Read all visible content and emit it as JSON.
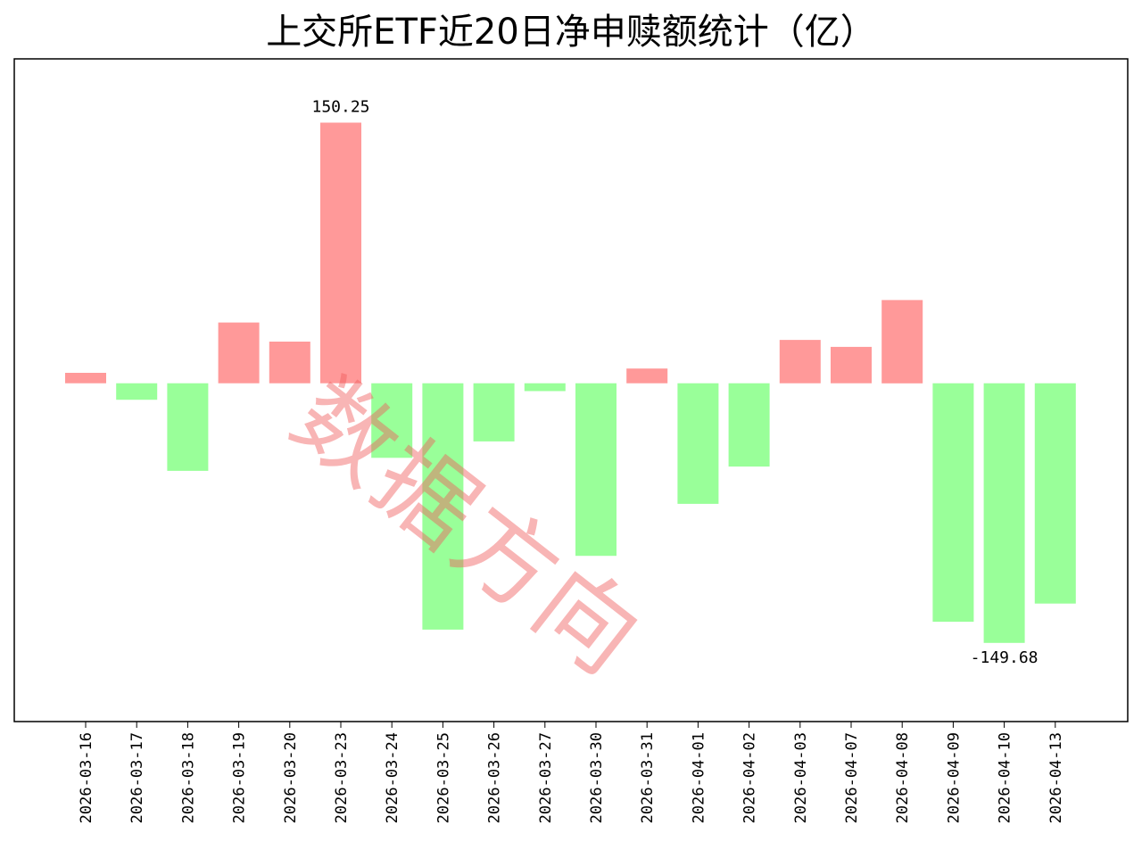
{
  "chart_data": {
    "type": "bar",
    "title": "上交所ETF近20日净申赎额统计（亿）",
    "xlabel": "",
    "ylabel": "",
    "categories": [
      "2026-03-16",
      "2026-03-17",
      "2026-03-18",
      "2026-03-19",
      "2026-03-20",
      "2026-03-23",
      "2026-03-24",
      "2026-03-25",
      "2026-03-26",
      "2026-03-27",
      "2026-03-30",
      "2026-03-31",
      "2026-04-01",
      "2026-04-02",
      "2026-04-03",
      "2026-04-07",
      "2026-04-08",
      "2026-04-09",
      "2026-04-10",
      "2026-04-13"
    ],
    "values": [
      6.0,
      -9.5,
      -50.5,
      35.0,
      24.0,
      150.25,
      -43.0,
      -142.0,
      -33.5,
      -4.5,
      -99.5,
      8.5,
      -69.5,
      -48.0,
      25.0,
      21.0,
      48.0,
      -137.5,
      -149.68,
      -127.0
    ],
    "ylim": [
      -195,
      187
    ],
    "annotations": [
      {
        "category": "2026-03-23",
        "text": "150.25"
      },
      {
        "category": "2026-04-10",
        "text": "-149.68"
      }
    ],
    "colors": {
      "positive": "#ff9999",
      "negative": "#99ff99"
    },
    "grid": false,
    "legend": "none",
    "watermark": "数据方向"
  }
}
